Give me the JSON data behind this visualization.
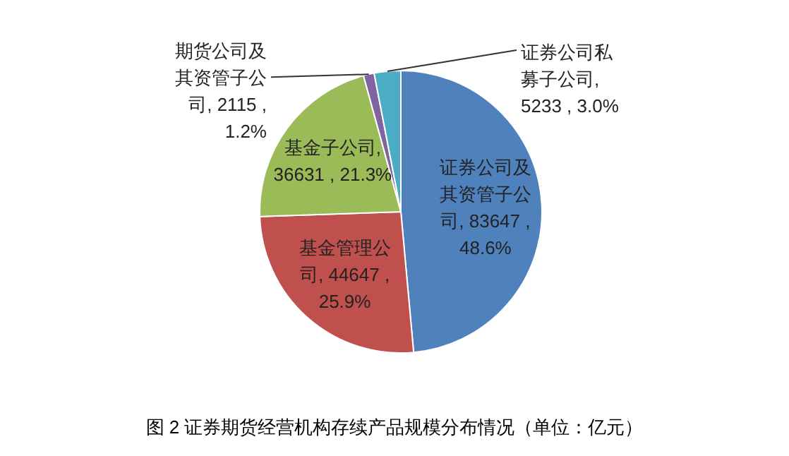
{
  "chart_data": {
    "type": "pie",
    "title": "图 2  证券期货经营机构存续产品规模分布情况（单位：亿元）",
    "categories": [
      "证券公司及其资管子公司",
      "基金管理公司",
      "基金子公司",
      "期货公司及其资管子公司",
      "证券公司私募子公司"
    ],
    "values": [
      83647,
      44647,
      36631,
      2115,
      5233
    ],
    "value_labels": [
      ", 83647 , 48.6%",
      ", 44647 , 25.9%",
      ", 36631 , 21.3%",
      ", 2115 , 1.2%",
      ", 5233 , 3.0%"
    ],
    "colors": [
      "#4f81bd",
      "#c0504d",
      "#9bbb59",
      "#8064a2",
      "#4bacc6"
    ]
  }
}
